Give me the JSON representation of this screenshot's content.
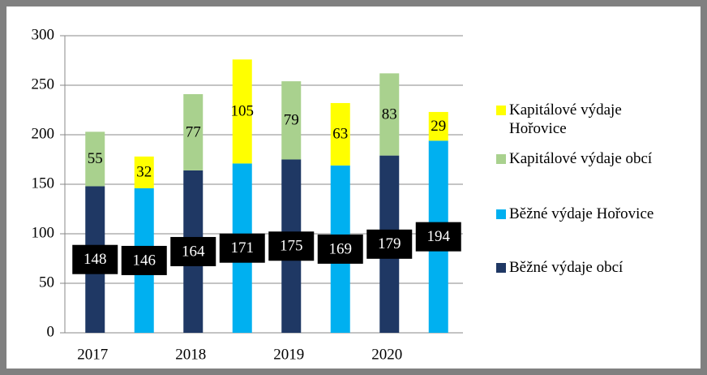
{
  "chart_data": {
    "type": "stacked_bar",
    "categories": [
      "2017",
      null,
      "2018",
      null,
      "2019",
      null,
      "2020",
      null
    ],
    "series": [
      {
        "name": "Běžné výdaje obcí",
        "color": "#1f3864",
        "values": [
          148,
          null,
          164,
          null,
          175,
          null,
          179,
          null
        ]
      },
      {
        "name": "Běžné výdaje Hořovice",
        "color": "#00b0f0",
        "values": [
          null,
          146,
          null,
          171,
          null,
          169,
          null,
          194
        ]
      },
      {
        "name": "Kapitálové výdaje obcí",
        "color": "#a9d18e",
        "values": [
          55,
          null,
          77,
          null,
          79,
          null,
          83,
          null
        ]
      },
      {
        "name": "Kapitálové výdaje Hořovice",
        "color": "#ffff00",
        "values": [
          null,
          32,
          null,
          105,
          null,
          63,
          null,
          29
        ]
      }
    ],
    "ylim": [
      0,
      300
    ],
    "yticks": [
      0,
      50,
      100,
      150,
      200,
      250,
      300
    ],
    "grid": true,
    "legend": "right"
  }
}
